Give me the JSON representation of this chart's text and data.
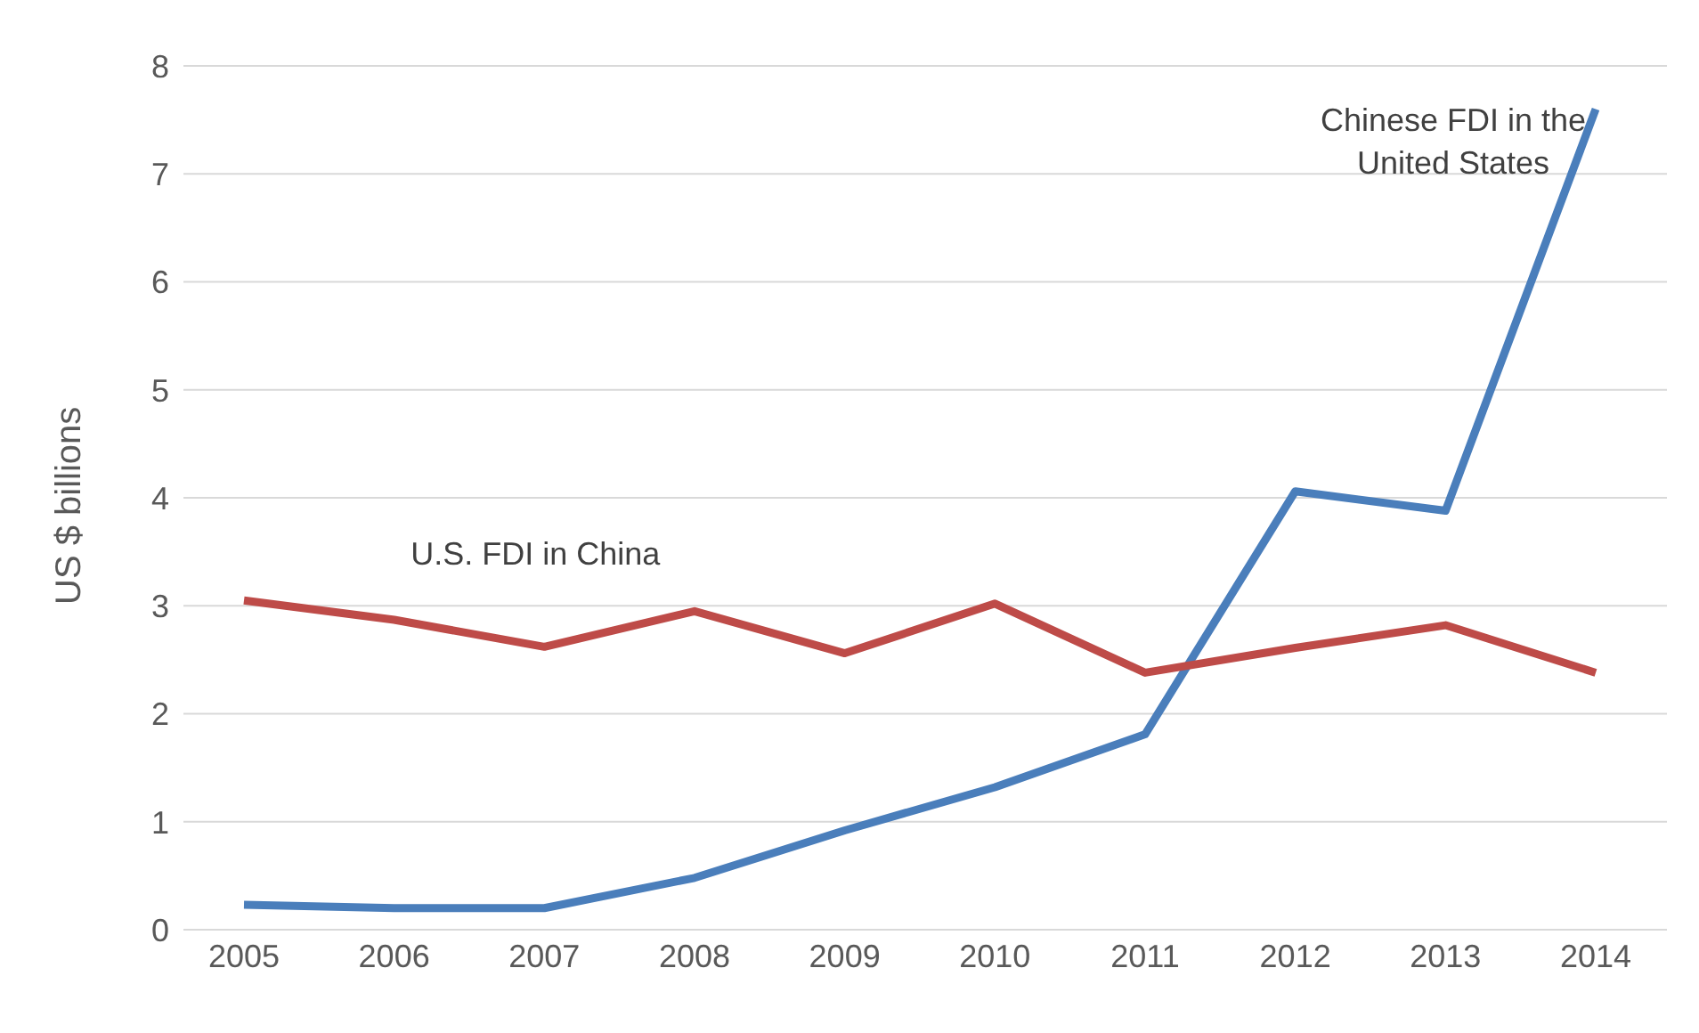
{
  "chart_data": {
    "type": "line",
    "ylabel": "US $ billions",
    "categories": [
      "2005",
      "2006",
      "2007",
      "2008",
      "2009",
      "2010",
      "2011",
      "2012",
      "2013",
      "2014"
    ],
    "series": [
      {
        "name": "Chinese FDI in the United States",
        "color": "#4a7ebb",
        "values": [
          0.23,
          0.2,
          0.2,
          0.48,
          0.92,
          1.32,
          1.81,
          4.06,
          3.88,
          7.6
        ]
      },
      {
        "name": "U.S. FDI in China",
        "color": "#be4b48",
        "values": [
          3.05,
          2.87,
          2.62,
          2.95,
          2.56,
          3.02,
          2.38,
          2.61,
          2.82,
          2.38
        ]
      }
    ],
    "ylim": [
      0,
      8
    ],
    "yticks": [
      0,
      1,
      2,
      3,
      4,
      5,
      6,
      7,
      8
    ],
    "grid": "y",
    "legend": false,
    "marker": "none",
    "line_style": "solid"
  }
}
